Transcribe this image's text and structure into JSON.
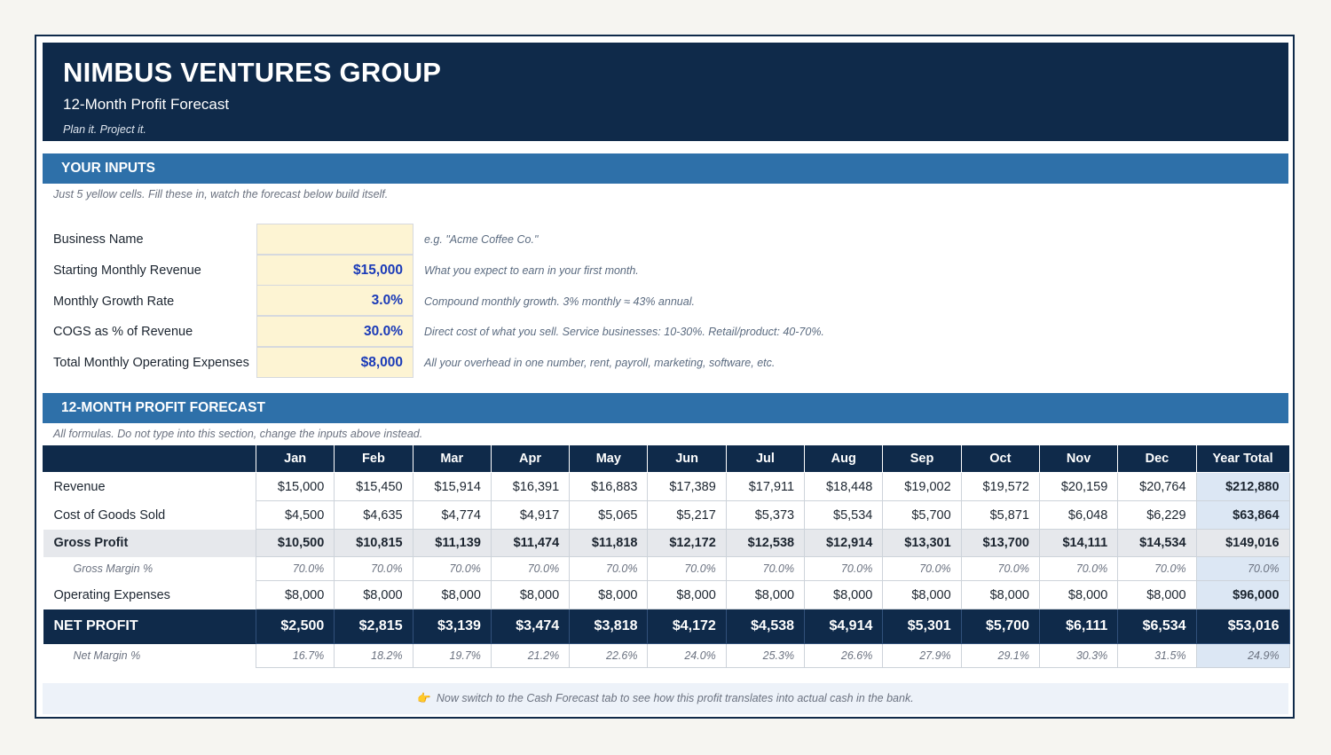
{
  "header": {
    "title": "NIMBUS VENTURES GROUP",
    "subtitle": "12-Month Profit Forecast",
    "tagline": "Plan it.  Project it."
  },
  "inputs": {
    "heading": "YOUR INPUTS",
    "note": "Just 5 yellow cells. Fill these in, watch the forecast below build itself.",
    "rows": [
      {
        "label": "Business Name",
        "value": "",
        "hint": "e.g. \"Acme Coffee Co.\""
      },
      {
        "label": "Starting Monthly Revenue",
        "value": "$15,000",
        "hint": "What you expect to earn in your first month."
      },
      {
        "label": "Monthly Growth Rate",
        "value": "3.0%",
        "hint": "Compound monthly growth. 3% monthly ≈ 43% annual."
      },
      {
        "label": "COGS as % of Revenue",
        "value": "30.0%",
        "hint": "Direct cost of what you sell. Service businesses: 10-30%. Retail/product: 40-70%."
      },
      {
        "label": "Total Monthly Operating Expenses",
        "value": "$8,000",
        "hint": "All your overhead in one number, rent, payroll, marketing, software, etc."
      }
    ]
  },
  "forecast": {
    "heading": "12-MONTH PROFIT FORECAST",
    "note": "All formulas. Do not type into this section, change the inputs above instead.",
    "columns": [
      "Jan",
      "Feb",
      "Mar",
      "Apr",
      "May",
      "Jun",
      "Jul",
      "Aug",
      "Sep",
      "Oct",
      "Nov",
      "Dec",
      "Year Total"
    ],
    "rows": [
      {
        "label": "Revenue",
        "values": [
          "$15,000",
          "$15,450",
          "$15,914",
          "$16,391",
          "$16,883",
          "$17,389",
          "$17,911",
          "$18,448",
          "$19,002",
          "$19,572",
          "$20,159",
          "$20,764",
          "$212,880"
        ]
      },
      {
        "label": "Cost of Goods Sold",
        "values": [
          "$4,500",
          "$4,635",
          "$4,774",
          "$4,917",
          "$5,065",
          "$5,217",
          "$5,373",
          "$5,534",
          "$5,700",
          "$5,871",
          "$6,048",
          "$6,229",
          "$63,864"
        ]
      },
      {
        "label": "Gross Profit",
        "values": [
          "$10,500",
          "$10,815",
          "$11,139",
          "$11,474",
          "$11,818",
          "$12,172",
          "$12,538",
          "$12,914",
          "$13,301",
          "$13,700",
          "$14,111",
          "$14,534",
          "$149,016"
        ]
      },
      {
        "label": "Gross Margin %",
        "values": [
          "70.0%",
          "70.0%",
          "70.0%",
          "70.0%",
          "70.0%",
          "70.0%",
          "70.0%",
          "70.0%",
          "70.0%",
          "70.0%",
          "70.0%",
          "70.0%",
          "70.0%"
        ]
      },
      {
        "label": "Operating Expenses",
        "values": [
          "$8,000",
          "$8,000",
          "$8,000",
          "$8,000",
          "$8,000",
          "$8,000",
          "$8,000",
          "$8,000",
          "$8,000",
          "$8,000",
          "$8,000",
          "$8,000",
          "$96,000"
        ]
      },
      {
        "label": "NET PROFIT",
        "values": [
          "$2,500",
          "$2,815",
          "$3,139",
          "$3,474",
          "$3,818",
          "$4,172",
          "$4,538",
          "$4,914",
          "$5,301",
          "$5,700",
          "$6,111",
          "$6,534",
          "$53,016"
        ]
      },
      {
        "label": "Net Margin %",
        "values": [
          "16.7%",
          "18.2%",
          "19.7%",
          "21.2%",
          "22.6%",
          "24.0%",
          "25.3%",
          "26.6%",
          "27.9%",
          "29.1%",
          "30.3%",
          "31.5%",
          "24.9%"
        ]
      }
    ]
  },
  "footer": {
    "icon": "pointing-hand-icon",
    "text": "Now switch to the Cash Forecast tab to see how this profit translates into actual cash in the bank."
  },
  "colors": {
    "navy": "#0f2a4a",
    "section_blue": "#2e70a9",
    "input_yellow": "#fdf4d3",
    "input_text": "#1a3ab8",
    "total_blue": "#dce7f4"
  }
}
